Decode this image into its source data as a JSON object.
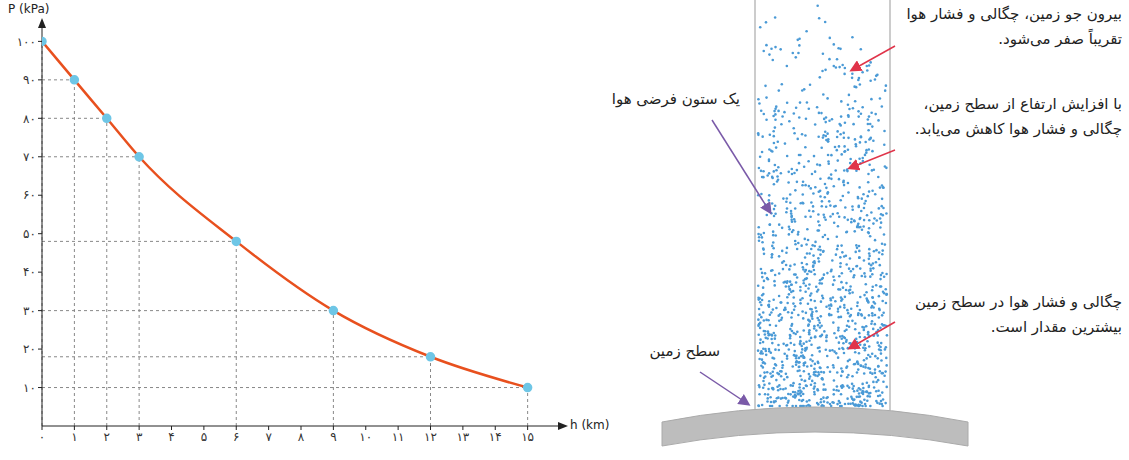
{
  "chart_data": {
    "type": "line",
    "x_label": "h (km)",
    "y_label": "P (kPa)",
    "x": [
      0,
      1,
      2,
      3,
      6,
      9,
      12,
      15
    ],
    "values": [
      100,
      90,
      80,
      70,
      48,
      30,
      18,
      10
    ],
    "color": "#e8501e",
    "marker": "circle",
    "xlim": [
      0,
      16
    ],
    "xticks": [
      {
        "value": 0,
        "label": "۰"
      },
      {
        "value": 1,
        "label": "۱"
      },
      {
        "value": 2,
        "label": "۲"
      },
      {
        "value": 3,
        "label": "۳"
      },
      {
        "value": 4,
        "label": "۴"
      },
      {
        "value": 5,
        "label": "۵"
      },
      {
        "value": 6,
        "label": "۶"
      },
      {
        "value": 7,
        "label": "۷"
      },
      {
        "value": 8,
        "label": "۸"
      },
      {
        "value": 9,
        "label": "۹"
      },
      {
        "value": 10,
        "label": "۱۰"
      },
      {
        "value": 11,
        "label": "۱۱"
      },
      {
        "value": 12,
        "label": "۱۲"
      },
      {
        "value": 13,
        "label": "۱۳"
      },
      {
        "value": 14,
        "label": "۱۴"
      },
      {
        "value": 15,
        "label": "۱۵"
      }
    ],
    "ylim": [
      0,
      104
    ],
    "yticks": [
      {
        "value": 10,
        "label": "۱۰"
      },
      {
        "value": 20,
        "label": "۲۰"
      },
      {
        "value": 30,
        "label": "۳۰"
      },
      {
        "value": 40,
        "label": "۴۰"
      },
      {
        "value": 50,
        "label": "۵۰"
      },
      {
        "value": 60,
        "label": "۶۰"
      },
      {
        "value": 70,
        "label": "۷۰"
      },
      {
        "value": 80,
        "label": "۸۰"
      },
      {
        "value": 90,
        "label": "۹۰"
      },
      {
        "value": 100,
        "label": "۱۰۰"
      }
    ],
    "grid": false
  },
  "diagram": {
    "column_label": "یک ستون فرضی هوا",
    "ground_label": "سطح زمین",
    "annotations": [
      "بیرون جو زمین، چگالی و فشار هوا تقریباً صفر می‌شود.",
      "با افزایش ارتفاع از سطح زمین، چگالی و فشار هوا کاهش می‌یابد.",
      "چگالی و فشار هوا در سطح زمین بیشترین مقدار است."
    ]
  }
}
